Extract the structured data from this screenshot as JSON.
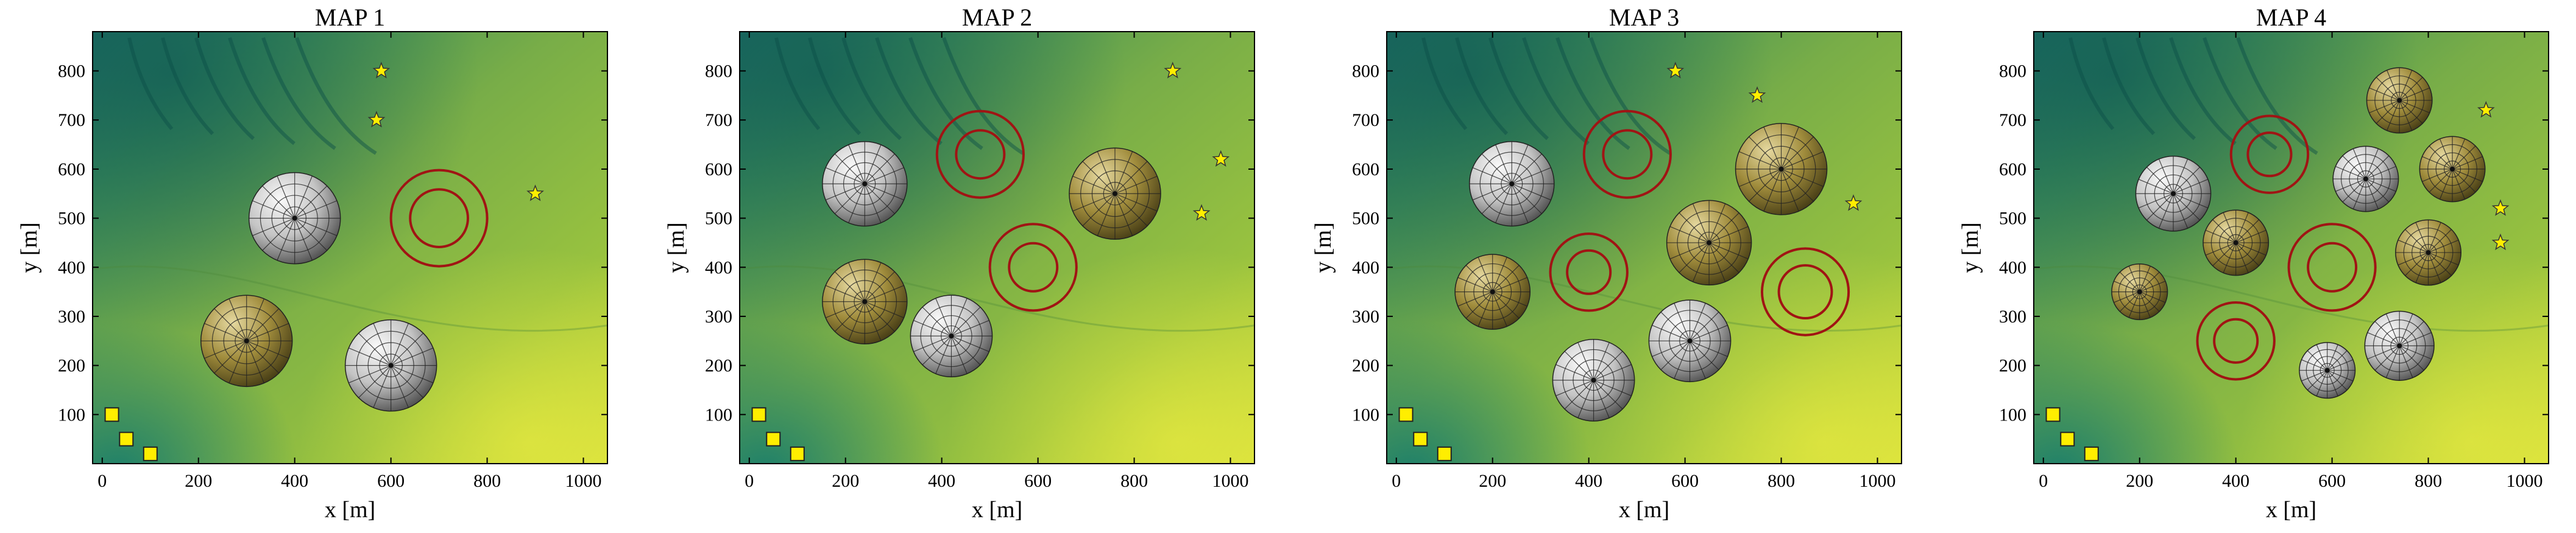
{
  "chart_data": [
    {
      "type": "scatter",
      "title": "MAP 1",
      "xlabel": "x [m]",
      "ylabel": "y [m]",
      "xlim": [
        -20,
        1050
      ],
      "ylim": [
        0,
        880
      ],
      "xticks": [
        "0",
        "200",
        "400",
        "600",
        "800",
        "1000"
      ],
      "yticks": [
        "100",
        "200",
        "300",
        "400",
        "500",
        "600",
        "700",
        "800"
      ],
      "domes": [
        {
          "x": 400,
          "y": 500,
          "r": 95,
          "color": "gray"
        },
        {
          "x": 300,
          "y": 250,
          "r": 95,
          "color": "olive"
        },
        {
          "x": 600,
          "y": 200,
          "r": 95,
          "color": "gray"
        }
      ],
      "rings": [
        {
          "x": 700,
          "y": 500,
          "r_inner": 60,
          "r_outer": 100
        }
      ],
      "stars": [
        {
          "x": 580,
          "y": 800
        },
        {
          "x": 570,
          "y": 700
        },
        {
          "x": 900,
          "y": 550
        }
      ],
      "squares": [
        {
          "x": 20,
          "y": 100
        },
        {
          "x": 50,
          "y": 50
        },
        {
          "x": 100,
          "y": 20
        }
      ]
    },
    {
      "type": "scatter",
      "title": "MAP 2",
      "xlabel": "x [m]",
      "ylabel": "y [m]",
      "xlim": [
        -20,
        1050
      ],
      "ylim": [
        0,
        880
      ],
      "xticks": [
        "0",
        "200",
        "400",
        "600",
        "800",
        "1000"
      ],
      "yticks": [
        "100",
        "200",
        "300",
        "400",
        "500",
        "600",
        "700",
        "800"
      ],
      "domes": [
        {
          "x": 240,
          "y": 570,
          "r": 88,
          "color": "gray"
        },
        {
          "x": 760,
          "y": 550,
          "r": 95,
          "color": "olive"
        },
        {
          "x": 240,
          "y": 330,
          "r": 88,
          "color": "olive"
        },
        {
          "x": 420,
          "y": 260,
          "r": 85,
          "color": "gray"
        }
      ],
      "rings": [
        {
          "x": 480,
          "y": 630,
          "r_inner": 50,
          "r_outer": 90
        },
        {
          "x": 590,
          "y": 400,
          "r_inner": 50,
          "r_outer": 90
        }
      ],
      "stars": [
        {
          "x": 880,
          "y": 800
        },
        {
          "x": 980,
          "y": 620
        },
        {
          "x": 940,
          "y": 510
        }
      ],
      "squares": [
        {
          "x": 20,
          "y": 100
        },
        {
          "x": 50,
          "y": 50
        },
        {
          "x": 100,
          "y": 20
        }
      ]
    },
    {
      "type": "scatter",
      "title": "MAP 3",
      "xlabel": "x [m]",
      "ylabel": "y [m]",
      "xlim": [
        -20,
        1050
      ],
      "ylim": [
        0,
        880
      ],
      "xticks": [
        "0",
        "200",
        "400",
        "600",
        "800",
        "1000"
      ],
      "yticks": [
        "100",
        "200",
        "300",
        "400",
        "500",
        "600",
        "700",
        "800"
      ],
      "domes": [
        {
          "x": 240,
          "y": 570,
          "r": 88,
          "color": "gray"
        },
        {
          "x": 800,
          "y": 600,
          "r": 95,
          "color": "olive"
        },
        {
          "x": 650,
          "y": 450,
          "r": 88,
          "color": "olive"
        },
        {
          "x": 200,
          "y": 350,
          "r": 78,
          "color": "olive"
        },
        {
          "x": 610,
          "y": 250,
          "r": 85,
          "color": "gray"
        },
        {
          "x": 410,
          "y": 170,
          "r": 85,
          "color": "gray"
        }
      ],
      "rings": [
        {
          "x": 480,
          "y": 630,
          "r_inner": 50,
          "r_outer": 90
        },
        {
          "x": 400,
          "y": 390,
          "r_inner": 45,
          "r_outer": 80
        },
        {
          "x": 850,
          "y": 350,
          "r_inner": 55,
          "r_outer": 90
        }
      ],
      "stars": [
        {
          "x": 580,
          "y": 800
        },
        {
          "x": 750,
          "y": 750
        },
        {
          "x": 950,
          "y": 530
        }
      ],
      "squares": [
        {
          "x": 20,
          "y": 100
        },
        {
          "x": 50,
          "y": 50
        },
        {
          "x": 100,
          "y": 20
        }
      ]
    },
    {
      "type": "scatter",
      "title": "MAP 4",
      "xlabel": "x [m]",
      "ylabel": "y [m]",
      "xlim": [
        -20,
        1050
      ],
      "ylim": [
        0,
        880
      ],
      "xticks": [
        "0",
        "200",
        "400",
        "600",
        "800",
        "1000"
      ],
      "yticks": [
        "100",
        "200",
        "300",
        "400",
        "500",
        "600",
        "700",
        "800"
      ],
      "domes": [
        {
          "x": 740,
          "y": 740,
          "r": 68,
          "color": "olive"
        },
        {
          "x": 270,
          "y": 550,
          "r": 78,
          "color": "gray"
        },
        {
          "x": 670,
          "y": 580,
          "r": 68,
          "color": "gray"
        },
        {
          "x": 850,
          "y": 600,
          "r": 68,
          "color": "olive"
        },
        {
          "x": 400,
          "y": 450,
          "r": 68,
          "color": "olive"
        },
        {
          "x": 800,
          "y": 430,
          "r": 68,
          "color": "olive"
        },
        {
          "x": 200,
          "y": 350,
          "r": 58,
          "color": "olive"
        },
        {
          "x": 740,
          "y": 240,
          "r": 72,
          "color": "gray"
        },
        {
          "x": 590,
          "y": 190,
          "r": 58,
          "color": "gray"
        }
      ],
      "rings": [
        {
          "x": 470,
          "y": 630,
          "r_inner": 45,
          "r_outer": 80
        },
        {
          "x": 600,
          "y": 400,
          "r_inner": 50,
          "r_outer": 90
        },
        {
          "x": 400,
          "y": 250,
          "r_inner": 45,
          "r_outer": 80
        }
      ],
      "stars": [
        {
          "x": 920,
          "y": 720
        },
        {
          "x": 950,
          "y": 520
        },
        {
          "x": 950,
          "y": 450
        }
      ],
      "squares": [
        {
          "x": 20,
          "y": 100
        },
        {
          "x": 50,
          "y": 50
        },
        {
          "x": 100,
          "y": 20
        }
      ]
    }
  ],
  "colors": {
    "ring": "#a01414",
    "star": "#ffee00",
    "square": "#ffee00",
    "terrain_low": "#1f7a66",
    "terrain_mid": "#7cb043",
    "terrain_high": "#d7e23a"
  }
}
